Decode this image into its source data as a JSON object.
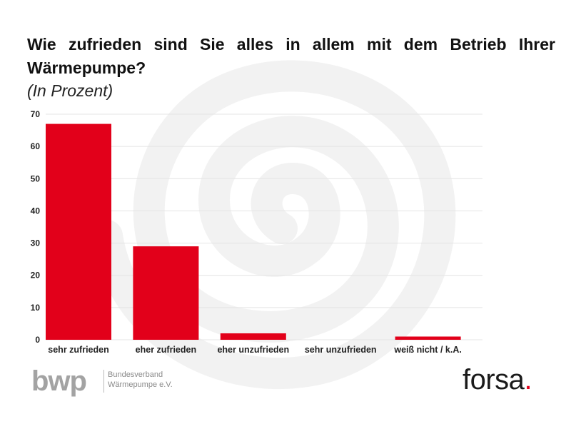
{
  "header": {
    "title": "Wie zufrieden sind Sie alles in allem mit dem Betrieb Ihrer Wärmepumpe?",
    "subtitle": "(In Prozent)"
  },
  "colors": {
    "bar": "#e2001a",
    "grid": "#e4e4e4",
    "watermark": "#f2f2f2"
  },
  "chart_data": {
    "type": "bar",
    "title": "Wie zufrieden sind Sie alles in allem mit dem Betrieb Ihrer Wärmepumpe?",
    "subtitle": "(In Prozent)",
    "categories": [
      "sehr zufrieden",
      "eher zufrieden",
      "eher unzufrieden",
      "sehr unzufrieden",
      "weiß nicht / k.A."
    ],
    "values": [
      67,
      29,
      2,
      0,
      1
    ],
    "yticks": [
      0,
      10,
      20,
      30,
      40,
      50,
      60,
      70
    ],
    "ylim": [
      0,
      70
    ],
    "xlabel": "",
    "ylabel": "",
    "grid": true
  },
  "logos": {
    "bwp_mark": "bwp",
    "bwp_line1": "Bundesverband",
    "bwp_line2": "Wärmepumpe e.V.",
    "forsa_word": "forsa",
    "forsa_dot": "."
  }
}
